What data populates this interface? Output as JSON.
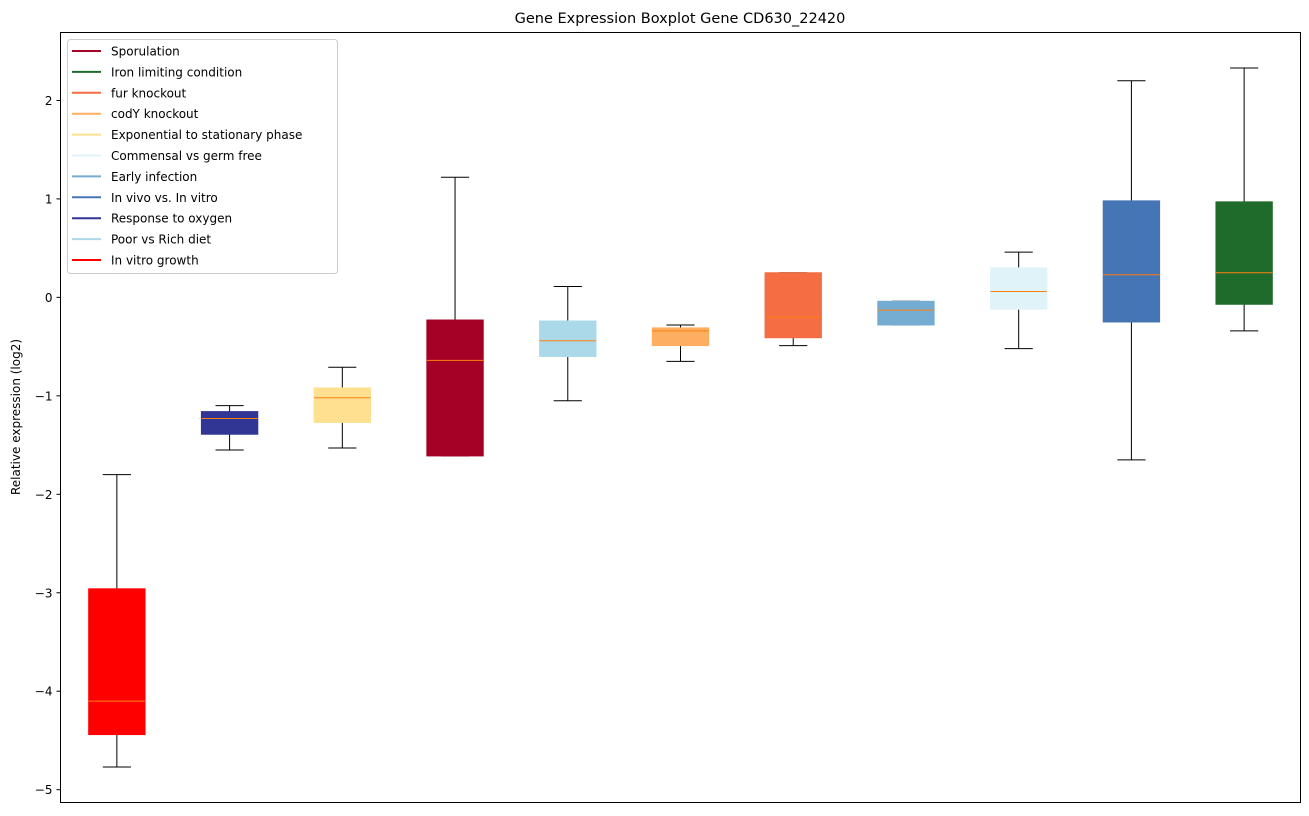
{
  "chart_data": {
    "type": "boxplot",
    "title": "Gene Expression Boxplot Gene CD630_22420",
    "xlabel": "",
    "ylabel": "Relative expression (log2)",
    "ylim": [
      -5.13,
      2.69
    ],
    "yticks": [
      -5,
      -4,
      -3,
      -2,
      -1,
      0,
      1,
      2
    ],
    "ytick_labels": [
      "−5",
      "−4",
      "−3",
      "−2",
      "−1",
      "0",
      "1",
      "2"
    ],
    "grid": false,
    "legend_placement": "top-left",
    "median_color": "#ff7f0e",
    "legend": [
      {
        "label": "Sporulation",
        "color": "#a50026"
      },
      {
        "label": "Iron limiting condition",
        "color": "#1f6b2c"
      },
      {
        "label": "fur knockout",
        "color": "#f46d43"
      },
      {
        "label": "codY knockout",
        "color": "#fdae61"
      },
      {
        "label": "Exponential to stationary phase",
        "color": "#fee090"
      },
      {
        "label": "Commensal vs germ free",
        "color": "#e0f3f8"
      },
      {
        "label": "Early infection",
        "color": "#74add1"
      },
      {
        "label": "In vivo vs. In vitro",
        "color": "#4575b4"
      },
      {
        "label": "Response to oxygen",
        "color": "#313695"
      },
      {
        "label": "Poor vs Rich diet",
        "color": "#abd9e9"
      },
      {
        "label": "In vitro growth",
        "color": "#ff0000"
      }
    ],
    "boxes": [
      {
        "name": "In vitro growth",
        "color": "#ff0000",
        "whislo": -4.77,
        "q1": -4.44,
        "med": -4.1,
        "q3": -2.96,
        "whishi": -1.8
      },
      {
        "name": "Response to oxygen",
        "color": "#313695",
        "whislo": -1.55,
        "q1": -1.39,
        "med": -1.23,
        "q3": -1.16,
        "whishi": -1.1
      },
      {
        "name": "Exponential to stationary phase",
        "color": "#fee090",
        "whislo": -1.53,
        "q1": -1.27,
        "med": -1.02,
        "q3": -0.92,
        "whishi": -0.71
      },
      {
        "name": "Sporulation",
        "color": "#a50026",
        "whislo": -1.61,
        "q1": -1.61,
        "med": -0.64,
        "q3": -0.23,
        "whishi": 1.22
      },
      {
        "name": "Poor vs Rich diet",
        "color": "#abd9e9",
        "whislo": -1.05,
        "q1": -0.6,
        "med": -0.44,
        "q3": -0.24,
        "whishi": 0.11
      },
      {
        "name": "codY knockout",
        "color": "#fdae61",
        "whislo": -0.65,
        "q1": -0.49,
        "med": -0.34,
        "q3": -0.31,
        "whishi": -0.28
      },
      {
        "name": "fur knockout",
        "color": "#f46d43",
        "whislo": -0.49,
        "q1": -0.41,
        "med": -0.2,
        "q3": 0.25,
        "whishi": 0.25
      },
      {
        "name": "Early infection",
        "color": "#74add1",
        "whislo": -0.28,
        "q1": -0.28,
        "med": -0.13,
        "q3": -0.04,
        "whishi": -0.04
      },
      {
        "name": "Commensal vs germ free",
        "color": "#e0f3f8",
        "whislo": -0.52,
        "q1": -0.12,
        "med": 0.06,
        "q3": 0.3,
        "whishi": 0.46
      },
      {
        "name": "In vivo vs. In vitro",
        "color": "#4575b4",
        "whislo": -1.65,
        "q1": -0.25,
        "med": 0.23,
        "q3": 0.98,
        "whishi": 2.2
      },
      {
        "name": "Iron limiting condition",
        "color": "#1f6b2c",
        "whislo": -0.34,
        "q1": -0.07,
        "med": 0.25,
        "q3": 0.97,
        "whishi": 2.33
      }
    ]
  }
}
